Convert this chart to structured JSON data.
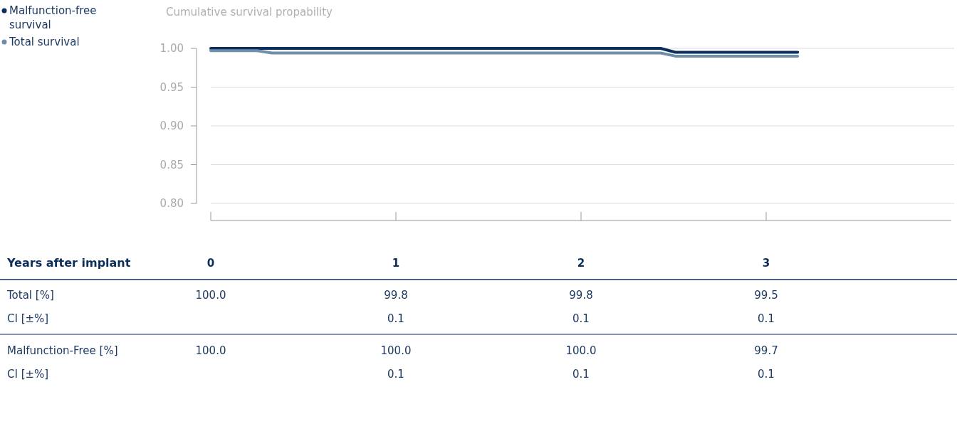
{
  "chart_data": {
    "type": "line",
    "ylabel": "Cumulative survival propability",
    "xlabel": "Years after implant",
    "xlim": [
      0,
      4
    ],
    "xticks": [
      0,
      1,
      2,
      3
    ],
    "ylim": [
      0.8,
      1.0
    ],
    "yticks": [
      {
        "value": 0.8,
        "label": "0.80"
      },
      {
        "value": 0.85,
        "label": "0.85"
      },
      {
        "value": 0.9,
        "label": "0.90"
      },
      {
        "value": 0.95,
        "label": "0.95"
      },
      {
        "value": 1.0,
        "label": "1.00"
      }
    ],
    "grid": "y",
    "legend": "top left",
    "line_style": "solid",
    "marker": "none",
    "series": [
      {
        "name": "Malfunction-free survival",
        "color": "#0b2f5c",
        "x": [
          0,
          2.43,
          2.51,
          3.17
        ],
        "values": [
          1.0,
          1.0,
          0.995,
          0.995
        ]
      },
      {
        "name": "Total survival",
        "color": "#6f8ea8",
        "x": [
          0,
          0.25,
          0.33,
          2.43,
          2.51,
          3.17
        ],
        "values": [
          0.997,
          0.997,
          0.994,
          0.994,
          0.99,
          0.99
        ]
      }
    ],
    "annotations": [
      "Total [%]",
      "100.0",
      "99.8",
      "99.8",
      "99.5",
      "CI [±%]",
      "0.1",
      "0.1",
      "0.1",
      "Malfunction-Free [%]",
      "100.0",
      "100.0",
      "100.0",
      "99.7",
      "CI [±%]",
      "0.1",
      "0.1",
      "0.1"
    ]
  }
}
